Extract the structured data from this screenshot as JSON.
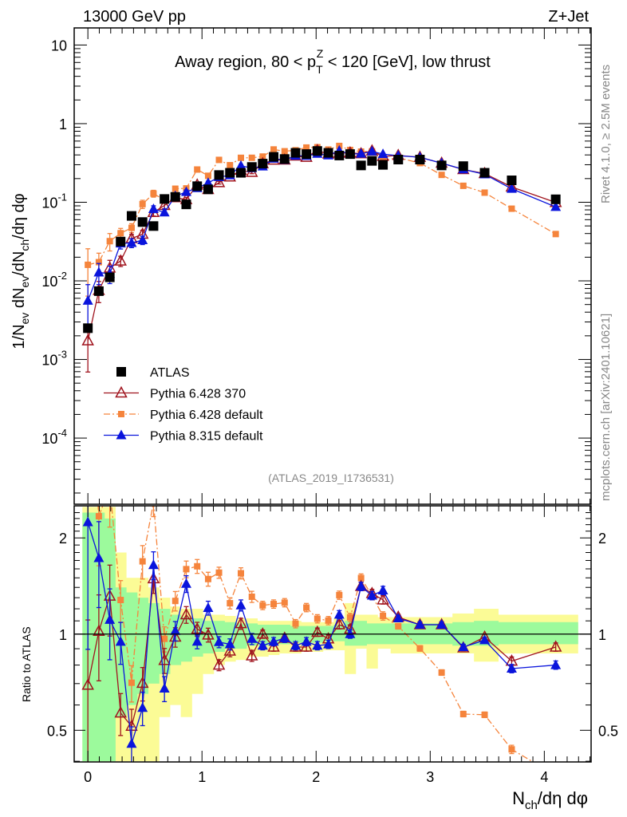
{
  "header": {
    "left": "13000 GeV pp",
    "right": "Z+Jet"
  },
  "side_labels": {
    "rivet": "Rivet 4.1.0, ≥ 2.5M events",
    "mcplots": "mcplots.cern.ch [arXiv:2401.10621]"
  },
  "chart_data": {
    "type": "line",
    "title": "Away region, 80 < p_T^Z < 120 [GeV], low thrust",
    "title_parts": {
      "pre": "Away region, 80 < p",
      "sub": "T",
      "sup": "Z",
      "post": " < 120 [GeV], low thrust"
    },
    "analysis_id": "(ATLAS_2019_I1736531)",
    "xlabel": "N_ch/dη dφ",
    "xlabel_parts": {
      "main": "N",
      "sub": "ch",
      "post": "/dη dφ"
    },
    "ylabel": "1/N_ev dN_ev/dN_ch/dη dφ",
    "ylabel_parts": [
      [
        "1/N",
        ""
      ],
      [
        "ev",
        "sub"
      ],
      [
        " dN",
        ""
      ],
      [
        "ev",
        "sub"
      ],
      [
        "/dN",
        ""
      ],
      [
        "ch",
        "sub"
      ],
      [
        "/dη dφ",
        ""
      ]
    ],
    "ratio_ylabel": "Ratio to ATLAS",
    "xlim": [
      -0.12,
      4.41
    ],
    "ylim": [
      1.44e-05,
      16.5
    ],
    "yscale": "log",
    "ratio_ylim": [
      0.398,
      2.52
    ],
    "ratio_yscale": "log",
    "x_ticks": [
      0,
      1,
      2,
      3,
      4
    ],
    "x_tick_labels": [
      "0",
      "1",
      "2",
      "3",
      "4"
    ],
    "y_ticks": [
      10,
      1,
      0.1,
      0.01,
      0.001,
      0.0001
    ],
    "y_tick_labels": [
      "10",
      "1",
      "10^-1",
      "10^-2",
      "10^-3",
      "10^-4"
    ],
    "ratio_ticks": [
      2,
      1,
      0.5
    ],
    "ratio_tick_labels": [
      "2",
      "1",
      "0.5"
    ],
    "legend_position": "lower-left",
    "x": [
      0.0,
      0.096,
      0.192,
      0.287,
      0.383,
      0.479,
      0.575,
      0.671,
      0.766,
      0.862,
      0.958,
      1.054,
      1.149,
      1.245,
      1.341,
      1.437,
      1.532,
      1.628,
      1.724,
      1.82,
      1.915,
      2.011,
      2.107,
      2.203,
      2.298,
      2.394,
      2.49,
      2.586,
      2.72,
      2.91,
      3.1,
      3.29,
      3.477,
      3.714,
      4.1
    ],
    "series": [
      {
        "name": "ATLAS",
        "color": "#000000",
        "marker": "square",
        "line": "none",
        "values": [
          0.0025,
          0.0074,
          0.0111,
          0.0316,
          0.067,
          0.056,
          0.0498,
          0.11,
          0.117,
          0.094,
          0.16,
          0.146,
          0.222,
          0.237,
          0.237,
          0.281,
          0.31,
          0.378,
          0.355,
          0.425,
          0.41,
          0.449,
          0.425,
          0.393,
          0.41,
          0.294,
          0.336,
          0.299,
          0.349,
          0.349,
          0.294,
          0.288,
          0.237,
          0.19,
          0.109
        ]
      },
      {
        "name": "Pythia 6.428 370",
        "color": "#a0141e",
        "marker": "open-triangle",
        "line": "solid",
        "values": [
          0.00173,
          0.00755,
          0.0146,
          0.0179,
          0.0345,
          0.0393,
          0.0742,
          0.091,
          0.1145,
          0.1081,
          0.1659,
          0.1451,
          0.1776,
          0.2097,
          0.2555,
          0.2403,
          0.31,
          0.3444,
          0.3447,
          0.3872,
          0.3735,
          0.4553,
          0.4106,
          0.4205,
          0.4252,
          0.4145,
          0.4502,
          0.3827,
          0.3944,
          0.3734,
          0.3146,
          0.2609,
          0.232,
          0.1564,
          0.0993
        ]
      },
      {
        "name": "Pythia 6.428 default",
        "color": "#f5843c",
        "marker": "square-small",
        "line": "dashdot",
        "values": [
          0.016,
          0.0173,
          0.032,
          0.0404,
          0.0472,
          0.0946,
          0.129,
          0.1063,
          0.1486,
          0.1501,
          0.2608,
          0.2171,
          0.3457,
          0.296,
          0.3674,
          0.3678,
          0.3813,
          0.4695,
          0.4452,
          0.4582,
          0.4965,
          0.5015,
          0.4684,
          0.5203,
          0.4625,
          0.4404,
          0.4435,
          0.3409,
          0.3692,
          0.3148,
          0.2229,
          0.1619,
          0.1325,
          0.0828,
          0.0394
        ]
      },
      {
        "name": "Pythia 8.315 default",
        "color": "#0a14dc",
        "marker": "triangle",
        "line": "solid",
        "values": [
          0.0056,
          0.0128,
          0.0123,
          0.0299,
          0.0304,
          0.0329,
          0.0819,
          0.0743,
          0.1197,
          0.135,
          0.1515,
          0.1762,
          0.2096,
          0.2202,
          0.2915,
          0.2714,
          0.2852,
          0.358,
          0.3447,
          0.391,
          0.3883,
          0.413,
          0.3948,
          0.452,
          0.41,
          0.4145,
          0.4435,
          0.4096,
          0.3909,
          0.3734,
          0.3146,
          0.2624,
          0.2268,
          0.1482,
          0.0872
        ]
      }
    ],
    "model_rel_err": [
      0.6,
      0.3,
      0.25,
      0.15,
      0.13,
      0.12,
      0.1,
      0.09,
      0.07,
      0.06,
      0.05,
      0.05,
      0.04,
      0.04,
      0.04,
      0.04,
      0.03,
      0.03,
      0.03,
      0.03,
      0.03,
      0.03,
      0.03,
      0.03,
      0.03,
      0.03,
      0.03,
      0.03,
      0.02,
      0.02,
      0.02,
      0.02,
      0.02,
      0.03,
      0.03
    ],
    "ratio_bands": {
      "stat": {
        "color": "#9cfa9c",
        "lo": [
          0.4,
          0.4,
          0.4,
          0.55,
          0.6,
          0.65,
          0.7,
          0.75,
          0.8,
          0.82,
          0.85,
          0.87,
          0.88,
          0.9,
          0.9,
          0.92,
          0.92,
          0.93,
          0.93,
          0.94,
          0.94,
          0.94,
          0.95,
          0.95,
          0.92,
          0.92,
          0.93,
          0.93,
          0.93,
          0.93,
          0.93,
          0.92,
          0.92,
          0.93,
          0.93
        ],
        "hi": [
          2.4,
          2.4,
          2.3,
          1.4,
          1.35,
          1.3,
          1.25,
          1.2,
          1.15,
          1.13,
          1.12,
          1.1,
          1.1,
          1.09,
          1.08,
          1.08,
          1.07,
          1.07,
          1.07,
          1.06,
          1.06,
          1.06,
          1.06,
          1.07,
          1.1,
          1.1,
          1.08,
          1.08,
          1.08,
          1.08,
          1.08,
          1.09,
          1.1,
          1.09,
          1.09
        ]
      },
      "total": {
        "color": "#fbfb96",
        "lo": [
          0.4,
          0.4,
          0.4,
          0.4,
          0.4,
          0.4,
          0.4,
          0.55,
          0.6,
          0.55,
          0.65,
          0.75,
          0.8,
          0.82,
          0.83,
          0.85,
          0.85,
          0.86,
          0.87,
          0.87,
          0.88,
          0.88,
          0.89,
          0.89,
          0.75,
          0.9,
          0.78,
          0.9,
          0.87,
          0.87,
          0.87,
          0.87,
          0.82,
          0.87,
          0.87
        ],
        "hi": [
          2.5,
          2.5,
          2.5,
          1.8,
          1.5,
          1.5,
          1.4,
          1.3,
          1.22,
          1.2,
          1.2,
          1.15,
          1.15,
          1.14,
          1.12,
          1.12,
          1.1,
          1.1,
          1.1,
          1.1,
          1.09,
          1.09,
          1.09,
          1.12,
          1.25,
          1.15,
          1.15,
          1.13,
          1.13,
          1.13,
          1.13,
          1.16,
          1.2,
          1.15,
          1.15
        ]
      }
    }
  }
}
